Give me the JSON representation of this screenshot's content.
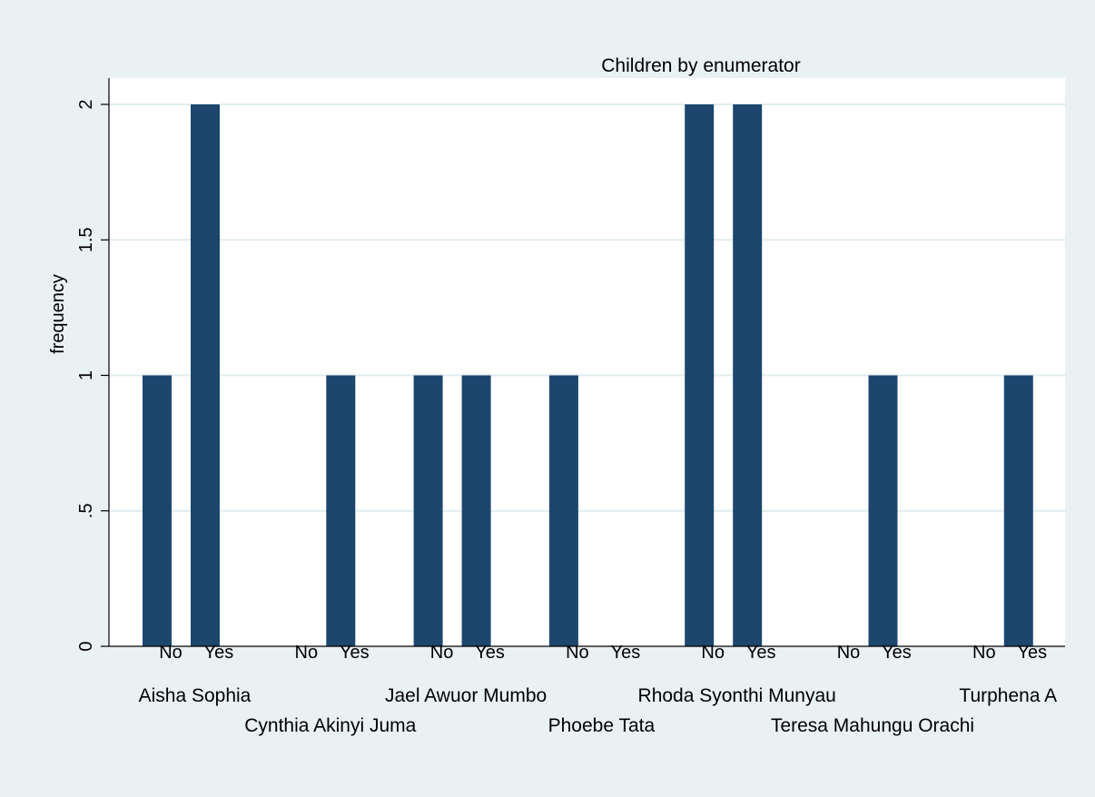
{
  "chart_data": {
    "type": "bar",
    "title": "Children by enumerator",
    "ylabel": "frequency",
    "xlabel": "",
    "ylim": [
      0,
      2
    ],
    "yticks": [
      {
        "value": 0,
        "label": "0"
      },
      {
        "value": 0.5,
        "label": ".5"
      },
      {
        "value": 1,
        "label": "1"
      },
      {
        "value": 1.5,
        "label": "1.5"
      },
      {
        "value": 2,
        "label": "2"
      }
    ],
    "grid": true,
    "sub_categories": [
      "No",
      "Yes"
    ],
    "groups": [
      {
        "name": "Aisha Sophia",
        "values": [
          1,
          2
        ]
      },
      {
        "name": "Cynthia Akinyi Juma",
        "values": [
          0,
          1
        ]
      },
      {
        "name": "Jael Awuor Mumbo",
        "values": [
          1,
          1
        ]
      },
      {
        "name": "Phoebe Tata",
        "values": [
          1,
          0
        ]
      },
      {
        "name": "Rhoda Syonthi Munyau",
        "values": [
          2,
          2
        ]
      },
      {
        "name": "Teresa Mahungu Orachi",
        "values": [
          0,
          1
        ]
      },
      {
        "name": "Turphena A",
        "values": [
          0,
          1
        ]
      }
    ],
    "colors": {
      "bar": "#1c466e",
      "grid": "#e1ecef",
      "background": "#eaf1f3",
      "plot": "#ffffff"
    }
  }
}
